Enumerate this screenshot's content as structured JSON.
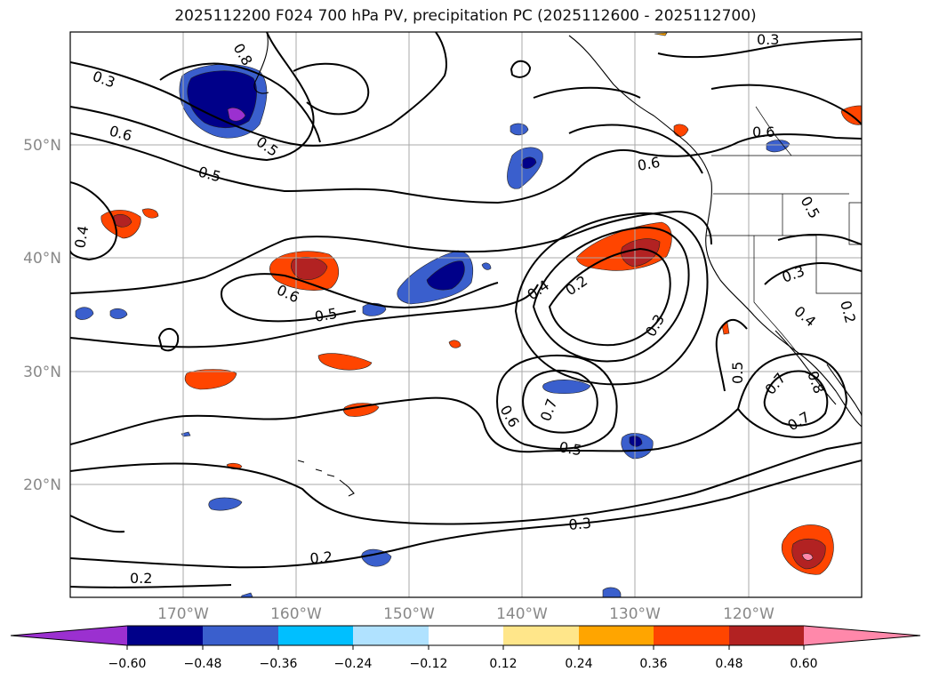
{
  "title": "2025112200 F024 700 hPa PV, precipitation PC (2025112600 - 2025112700)",
  "map": {
    "lon_range": [
      -180,
      -110
    ],
    "lat_range": [
      10,
      60
    ],
    "lat_ticks": [
      {
        "value": 20,
        "label": "20°N"
      },
      {
        "value": 30,
        "label": "30°N"
      },
      {
        "value": 40,
        "label": "40°N"
      },
      {
        "value": 50,
        "label": "50°N"
      }
    ],
    "lon_ticks": [
      {
        "value": -170,
        "label": "170°W"
      },
      {
        "value": -160,
        "label": "160°W"
      },
      {
        "value": -150,
        "label": "150°W"
      },
      {
        "value": -140,
        "label": "140°W"
      },
      {
        "value": -130,
        "label": "130°W"
      },
      {
        "value": -120,
        "label": "120°W"
      }
    ],
    "contour_labels": [
      "0.3",
      "0.6",
      "0.5",
      "0.4",
      "0.2",
      "0.7",
      "0.8"
    ]
  },
  "colorbar": {
    "ticks": [
      "−0.60",
      "−0.48",
      "−0.36",
      "−0.24",
      "−0.12",
      "0.12",
      "0.24",
      "0.36",
      "0.48",
      "0.60"
    ],
    "colors": [
      "#9b30d0",
      "#000089",
      "#3a5fcd",
      "#00bfff",
      "#b0e2ff",
      "#ffffff",
      "#ffe68a",
      "#ffa500",
      "#ff4500",
      "#b22222",
      "#ff88aa"
    ]
  }
}
